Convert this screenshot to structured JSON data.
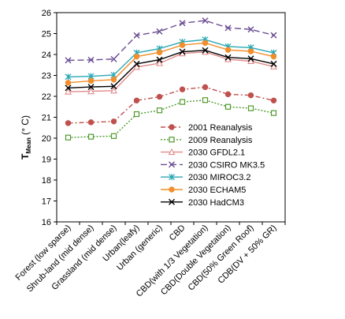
{
  "chart_data": {
    "type": "line",
    "title": "",
    "ylabel_main": "T",
    "ylabel_sub": "Mean",
    "ylabel_unit": " (° C)",
    "ylim": [
      16,
      26
    ],
    "yticks": [
      16,
      17,
      18,
      19,
      20,
      21,
      22,
      23,
      24,
      25,
      26
    ],
    "grid": false,
    "legend_position": "inside-lower-right",
    "categories": [
      "Forest (low sparse)",
      "Shrub-land (mid dense)",
      "Grassland (mid dense)",
      "Urban(leafy)",
      "Urban (generic)",
      "CBD",
      "CBD(with 1/3 Vegetation)",
      "CBD(Double Vegetation)",
      "CBD(50% Green Roof)",
      "CDB(DV + 50% GR)"
    ],
    "series": [
      {
        "name": "2001 Reanalysis",
        "color": "#c0504d",
        "marker": "dot",
        "dash": "6,3,2,3",
        "values": [
          20.72,
          20.76,
          20.8,
          21.8,
          21.98,
          22.33,
          22.44,
          22.1,
          22.05,
          21.8
        ]
      },
      {
        "name": "2009 Reanalysis",
        "color": "#4f9a2c",
        "marker": "square",
        "dash": "2,2",
        "values": [
          20.03,
          20.07,
          20.1,
          21.15,
          21.33,
          21.73,
          21.82,
          21.5,
          21.43,
          21.2
        ]
      },
      {
        "name": "2030 GFDL2.1",
        "color": "#e08b8b",
        "marker": "triangle",
        "dash": "",
        "values": [
          22.22,
          22.24,
          22.27,
          23.4,
          23.58,
          24.05,
          24.12,
          23.77,
          23.68,
          23.42
        ]
      },
      {
        "name": "2030 CSIRO MK3.5",
        "color": "#6a4c93",
        "marker": "x",
        "dash": "8,4",
        "values": [
          23.72,
          23.74,
          23.78,
          24.91,
          25.1,
          25.5,
          25.62,
          25.27,
          25.2,
          24.92
        ]
      },
      {
        "name": "2030 MIROC3.2",
        "color": "#2ba8b5",
        "marker": "star",
        "dash": "",
        "values": [
          22.93,
          22.96,
          23.02,
          24.08,
          24.28,
          24.6,
          24.71,
          24.38,
          24.33,
          24.08
        ]
      },
      {
        "name": "2030 ECHAM5",
        "color": "#f28e2b",
        "marker": "dot",
        "dash": "",
        "values": [
          22.65,
          22.74,
          22.8,
          23.9,
          24.1,
          24.45,
          24.55,
          24.22,
          24.15,
          23.9
        ]
      },
      {
        "name": "2030 HadCM3",
        "color": "#000000",
        "marker": "x",
        "dash": "",
        "values": [
          22.4,
          22.45,
          22.48,
          23.55,
          23.75,
          24.13,
          24.2,
          23.86,
          23.8,
          23.55
        ]
      }
    ]
  }
}
